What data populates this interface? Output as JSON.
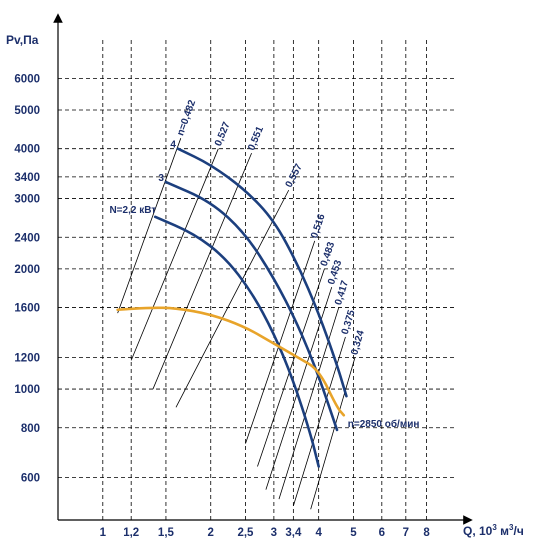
{
  "chart_data": {
    "type": "line",
    "title": "",
    "xlabel": "Q, 10",
    "xlabel_sup": "3",
    "xlabel_unit": " м",
    "xlabel_unit_sup": "3",
    "xlabel_tail": "/ч",
    "ylabel": "Pv,Па",
    "x_scale": "log",
    "y_scale": "log",
    "xlim": [
      0.75,
      9.6
    ],
    "ylim": [
      470,
      8500
    ],
    "x_ticks": [
      {
        "v": 1,
        "t": "1"
      },
      {
        "v": 1.2,
        "t": "1,2"
      },
      {
        "v": 1.5,
        "t": "1,5"
      },
      {
        "v": 2,
        "t": "2"
      },
      {
        "v": 2.5,
        "t": "2,5"
      },
      {
        "v": 3,
        "t": "3"
      },
      {
        "v": 3.4,
        "t": "3,4"
      },
      {
        "v": 4,
        "t": "4"
      },
      {
        "v": 5,
        "t": "5"
      },
      {
        "v": 6,
        "t": "6"
      },
      {
        "v": 7,
        "t": "7"
      },
      {
        "v": 8,
        "t": "8"
      }
    ],
    "y_ticks": [
      {
        "v": 600,
        "t": "600"
      },
      {
        "v": 800,
        "t": "800"
      },
      {
        "v": 1000,
        "t": "1000"
      },
      {
        "v": 1200,
        "t": "1200"
      },
      {
        "v": 1600,
        "t": "1600"
      },
      {
        "v": 2000,
        "t": "2000"
      },
      {
        "v": 2400,
        "t": "2400"
      },
      {
        "v": 3000,
        "t": "3000"
      },
      {
        "v": 3400,
        "t": "3400"
      },
      {
        "v": 4000,
        "t": "4000"
      },
      {
        "v": 5000,
        "t": "5000"
      },
      {
        "v": 6000,
        "t": "6000"
      }
    ],
    "grid": true,
    "series": [
      {
        "label": "4",
        "color": "#1c3f7e",
        "x": [
          1.62,
          2.0,
          2.5,
          3.0,
          3.5,
          4.0,
          4.5,
          4.78
        ],
        "y": [
          4000,
          3650,
          3150,
          2650,
          2050,
          1550,
          1150,
          960
        ]
      },
      {
        "label": "3",
        "color": "#1c3f7e",
        "x": [
          1.5,
          2.0,
          2.5,
          3.0,
          3.5,
          4.0,
          4.5
        ],
        "y": [
          3300,
          2950,
          2450,
          1900,
          1450,
          1080,
          790
        ]
      },
      {
        "label": "N=2,2 кВт",
        "color": "#1c3f7e",
        "x": [
          1.4,
          1.8,
          2.2,
          2.6,
          3.0,
          3.4,
          3.8,
          4.0
        ],
        "y": [
          2700,
          2450,
          2130,
          1750,
          1380,
          1050,
          770,
          640
        ]
      },
      {
        "label": "n=2850 об/мин",
        "color": "#e8a42a",
        "x": [
          1.1,
          1.35,
          1.6,
          2.0,
          2.5,
          3.0,
          3.5,
          4.0,
          4.5,
          4.7
        ],
        "y": [
          1580,
          1600,
          1595,
          1540,
          1430,
          1300,
          1200,
          1120,
          900,
          860
        ]
      }
    ],
    "efficiency_lines": [
      {
        "label": "n=0,482",
        "x": [
          1.1,
          1.65
        ],
        "y": [
          1550,
          4250
        ]
      },
      {
        "label": "0,527",
        "x": [
          1.2,
          2.1
        ],
        "y": [
          1180,
          4000
        ]
      },
      {
        "label": "0,551",
        "x": [
          1.38,
          2.6
        ],
        "y": [
          1000,
          3900
        ]
      },
      {
        "label": "0,557",
        "x": [
          1.6,
          3.3
        ],
        "y": [
          900,
          3150
        ]
      },
      {
        "label": "0,516",
        "x": [
          2.5,
          3.9
        ],
        "y": [
          730,
          2350
        ]
      },
      {
        "label": "0,483",
        "x": [
          2.7,
          4.15
        ],
        "y": [
          640,
          2000
        ]
      },
      {
        "label": "0,453",
        "x": [
          2.85,
          4.35
        ],
        "y": [
          560,
          1800
        ]
      },
      {
        "label": "0,417",
        "x": [
          3.1,
          4.55
        ],
        "y": [
          530,
          1600
        ]
      },
      {
        "label": "0,375",
        "x": [
          3.4,
          4.75
        ],
        "y": [
          510,
          1350
        ]
      },
      {
        "label": "0,324",
        "x": [
          3.8,
          5.05
        ],
        "y": [
          500,
          1200
        ]
      }
    ]
  }
}
